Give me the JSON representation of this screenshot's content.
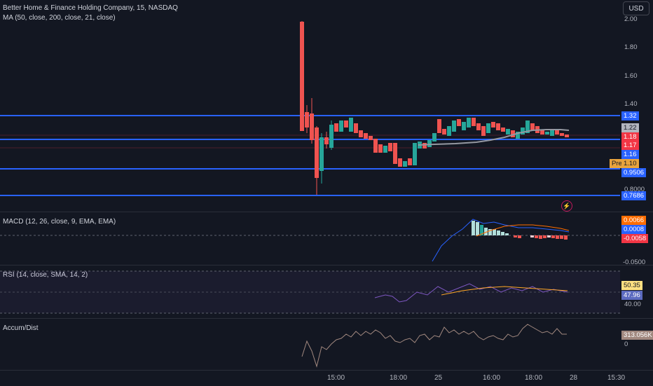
{
  "header": {
    "symbol_title": "Better Home & Finance Holding Company, 15, NASDAQ",
    "ma_title": "MA (50, close, 200, close, 21, close)",
    "currency_button": "USD"
  },
  "price_axis": {
    "ticks": [
      "2.00",
      "1.80",
      "1.60",
      "1.40",
      "0.8000"
    ],
    "badges": [
      {
        "text": "1.32",
        "color": "#2962ff"
      },
      {
        "text": "1.22",
        "color": "#b2b5be"
      },
      {
        "text": "1.18",
        "color": "#f23645"
      },
      {
        "text": "1.17",
        "color": "#f23645"
      },
      {
        "text": "1.16",
        "color": "#2962ff"
      },
      {
        "text": "1.10",
        "color": "#e8a33d"
      },
      {
        "text": "0.9506",
        "color": "#2962ff"
      },
      {
        "text": "0.7686",
        "color": "#2962ff"
      }
    ],
    "pre_label": "Pre"
  },
  "macd": {
    "title": "MACD (12, 26, close, 9, EMA, EMA)",
    "badges": [
      "0.0066",
      "0.0008",
      "-0.0058"
    ],
    "tick": "-0.0500"
  },
  "rsi": {
    "title": "RSI (14, close, SMA, 14, 2)",
    "badges": [
      "50.35",
      "47.96"
    ],
    "tick": "40.00"
  },
  "accum": {
    "title": "Accum/Dist",
    "badge": "313.056K",
    "tick": "0"
  },
  "time_axis": [
    "15:00",
    "18:00",
    "25",
    "16:00",
    "18:00",
    "28",
    "15:30"
  ],
  "colors": {
    "up": "#26a69a",
    "down": "#ef5350",
    "level": "#2962ff",
    "ma": "#9598a1"
  }
}
